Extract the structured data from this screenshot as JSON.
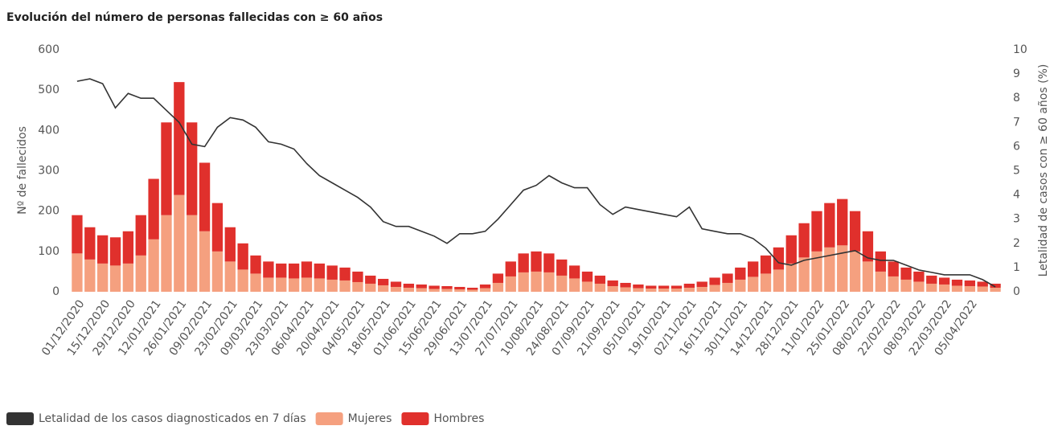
{
  "chart_data": {
    "type": "bar",
    "stacked": true,
    "title": "Evolución del número de personas fallecidas con ≥ 60 años",
    "ylabel": "Nº de fallecidos",
    "y2label": "Letalidad de casos con ≥ 60 años (%)",
    "categories": [
      "01/12/2020",
      null,
      "15/12/2020",
      null,
      "29/12/2020",
      null,
      "12/01/2021",
      null,
      "26/01/2021",
      null,
      "09/02/2021",
      null,
      "23/02/2021",
      null,
      "09/03/2021",
      null,
      "23/03/2021",
      null,
      "06/04/2021",
      null,
      "20/04/2021",
      null,
      "04/05/2021",
      null,
      "18/05/2021",
      null,
      "01/06/2021",
      null,
      "15/06/2021",
      null,
      "29/06/2021",
      null,
      "13/07/2021",
      null,
      "27/07/2021",
      null,
      "10/08/2021",
      null,
      "24/08/2021",
      null,
      "07/09/2021",
      null,
      "21/09/2021",
      null,
      "05/10/2021",
      null,
      "19/10/2021",
      null,
      "02/11/2021",
      null,
      "16/11/2021",
      null,
      "30/11/2021",
      null,
      "14/12/2021",
      null,
      "28/12/2021",
      null,
      "11/01/2022",
      null,
      "25/01/2022",
      null,
      "08/02/2022",
      null,
      "22/02/2022",
      null,
      "08/03/2022",
      null,
      "22/03/2022",
      null,
      "05/04/2022",
      null,
      null
    ],
    "series": [
      {
        "name": "Letalidad de los casos diagnosticados en 7 días",
        "type": "line",
        "axis": "y2",
        "color": "#333333",
        "values": [
          8.7,
          8.8,
          8.6,
          7.6,
          8.2,
          8.0,
          8.0,
          7.5,
          7.0,
          6.1,
          6.0,
          6.8,
          7.2,
          7.1,
          6.8,
          6.2,
          6.1,
          5.9,
          5.3,
          4.8,
          4.5,
          4.2,
          3.9,
          3.5,
          2.9,
          2.7,
          2.7,
          2.5,
          2.3,
          2.0,
          2.4,
          2.4,
          2.5,
          3.0,
          3.6,
          4.2,
          4.4,
          4.8,
          4.5,
          4.3,
          4.3,
          3.6,
          3.2,
          3.5,
          3.4,
          3.3,
          3.2,
          3.1,
          3.5,
          2.6,
          2.5,
          2.4,
          2.4,
          2.2,
          1.8,
          1.2,
          1.1,
          1.3,
          1.4,
          1.5,
          1.6,
          1.7,
          1.4,
          1.3,
          1.3,
          1.1,
          0.9,
          0.8,
          0.7,
          0.7,
          0.7,
          0.5,
          0.2
        ]
      },
      {
        "name": "Mujeres",
        "type": "bar",
        "color": "#f5a07f",
        "values": [
          95,
          80,
          70,
          65,
          70,
          90,
          130,
          190,
          240,
          190,
          150,
          100,
          75,
          55,
          45,
          35,
          35,
          33,
          35,
          33,
          30,
          28,
          24,
          20,
          16,
          12,
          10,
          9,
          7,
          7,
          6,
          5,
          9,
          22,
          38,
          48,
          50,
          48,
          40,
          33,
          25,
          20,
          14,
          11,
          9,
          8,
          8,
          8,
          10,
          12,
          17,
          22,
          30,
          37,
          45,
          55,
          70,
          85,
          100,
          110,
          115,
          100,
          75,
          50,
          38,
          30,
          25,
          20,
          18,
          15,
          14,
          13,
          10
        ]
      },
      {
        "name": "Hombres",
        "type": "bar",
        "color": "#e0302c",
        "values": [
          95,
          80,
          70,
          70,
          80,
          100,
          150,
          230,
          280,
          230,
          170,
          120,
          85,
          65,
          45,
          40,
          35,
          37,
          40,
          37,
          35,
          32,
          26,
          20,
          16,
          13,
          10,
          9,
          8,
          7,
          6,
          5,
          9,
          23,
          37,
          47,
          50,
          47,
          40,
          32,
          25,
          20,
          14,
          11,
          9,
          7,
          7,
          7,
          10,
          13,
          18,
          23,
          30,
          38,
          45,
          55,
          70,
          85,
          100,
          110,
          115,
          100,
          75,
          50,
          37,
          30,
          25,
          20,
          17,
          15,
          14,
          12,
          10
        ]
      }
    ],
    "ylim": [
      0,
      600
    ],
    "yticks": [
      0,
      100,
      200,
      300,
      400,
      500,
      600
    ],
    "y2lim": [
      0,
      10
    ],
    "y2ticks": [
      0,
      1,
      2,
      3,
      4,
      5,
      6,
      7,
      8,
      9,
      10
    ],
    "legend": "bottom-left"
  }
}
